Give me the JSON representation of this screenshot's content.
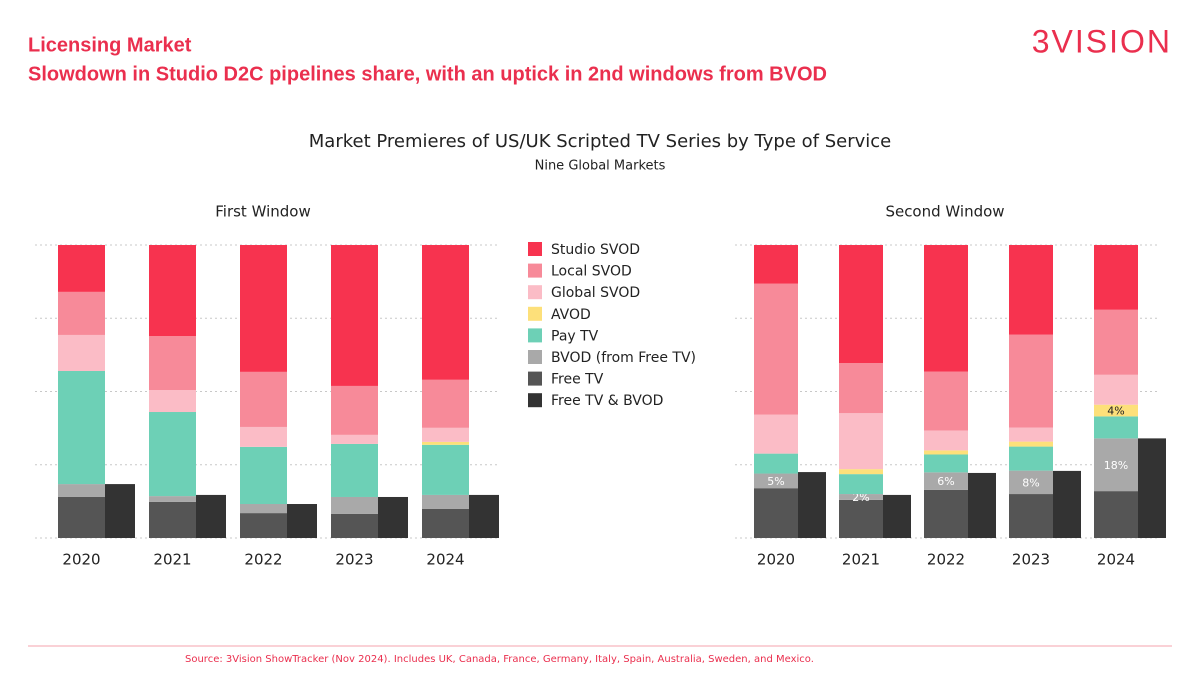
{
  "header": {
    "title": "Licensing Market",
    "subtitle": "Slowdown in Studio D2C pipelines share, with an uptick in 2nd windows from BVOD",
    "logo": "3VISION"
  },
  "figure": {
    "title": "Market Premieres of US/UK Scripted TV Series by Type of Service",
    "subtitle": "Nine Global Markets"
  },
  "source": "Source: 3Vision ShowTracker (Nov 2024). Includes UK, Canada, France, Germany, Italy, Spain, Australia, Sweden, and Mexico.",
  "chart_data": [
    {
      "type": "bar",
      "title": "First Window",
      "categories": [
        "2020",
        "2021",
        "2022",
        "2023",
        "2024"
      ],
      "ylim": [
        0,
        100
      ],
      "yticks": [
        0,
        25,
        50,
        75,
        100
      ],
      "grid": true,
      "series": [
        {
          "name": "Studio SVOD",
          "color": "#f7334f",
          "values": [
            16,
            31.1,
            43.3,
            48.1,
            46
          ]
        },
        {
          "name": "Local SVOD",
          "color": "#f78a99",
          "values": [
            14.7,
            18.4,
            18.8,
            16.7,
            16.4
          ]
        },
        {
          "name": "Global SVOD",
          "color": "#fbbcc6",
          "values": [
            12.3,
            7.5,
            6.8,
            3.1,
            4.8
          ]
        },
        {
          "name": "AVOD",
          "color": "#fde07a",
          "values": [
            0,
            0,
            0,
            0,
            1
          ]
        },
        {
          "name": "Pay TV",
          "color": "#6dd0b6",
          "values": [
            38.6,
            28.7,
            19.5,
            18.1,
            17.1
          ]
        },
        {
          "name": "BVOD (from Free TV)",
          "color": "#a9a9a9",
          "values": [
            4.4,
            2,
            3.1,
            5.8,
            4.8
          ]
        },
        {
          "name": "Free TV",
          "color": "#555555",
          "values": [
            14,
            12.3,
            8.5,
            8.2,
            9.9
          ]
        },
        {
          "name": "Free TV & BVOD",
          "color": "#333333",
          "values": [
            18.4,
            14.7,
            11.6,
            14,
            14.7
          ]
        }
      ]
    },
    {
      "type": "bar",
      "title": "Second Window",
      "categories": [
        "2020",
        "2021",
        "2022",
        "2023",
        "2024"
      ],
      "ylim": [
        0,
        100
      ],
      "yticks": [
        0,
        25,
        50,
        75,
        100
      ],
      "grid": true,
      "series": [
        {
          "name": "Studio SVOD",
          "color": "#f7334f",
          "values": [
            13.2,
            40.3,
            43.2,
            30.6,
            22.1
          ]
        },
        {
          "name": "Local SVOD",
          "color": "#f78a99",
          "values": [
            44.7,
            17.1,
            20.1,
            31.7,
            22.2
          ]
        },
        {
          "name": "Global SVOD",
          "color": "#fbbcc6",
          "values": [
            13.3,
            19.1,
            6.8,
            4.8,
            10.2
          ]
        },
        {
          "name": "AVOD",
          "color": "#fde07a",
          "values": [
            0,
            1.7,
            1.4,
            1.7,
            4
          ],
          "value_labels": [
            null,
            null,
            null,
            null,
            "4%"
          ]
        },
        {
          "name": "Pay TV",
          "color": "#6dd0b6",
          "values": [
            6.8,
            6.8,
            6.1,
            8.2,
            7.5
          ]
        },
        {
          "name": "BVOD (from Free TV)",
          "color": "#a9a9a9",
          "values": [
            5,
            2,
            6,
            8,
            18
          ],
          "value_labels": [
            "5%",
            "2%",
            "6%",
            "8%",
            "18%"
          ]
        },
        {
          "name": "Free TV",
          "color": "#555555",
          "values": [
            17,
            13,
            16.4,
            15,
            16
          ]
        },
        {
          "name": "Free TV & BVOD",
          "color": "#333333",
          "values": [
            22.5,
            14.7,
            22.2,
            22.9,
            34
          ]
        }
      ]
    }
  ]
}
